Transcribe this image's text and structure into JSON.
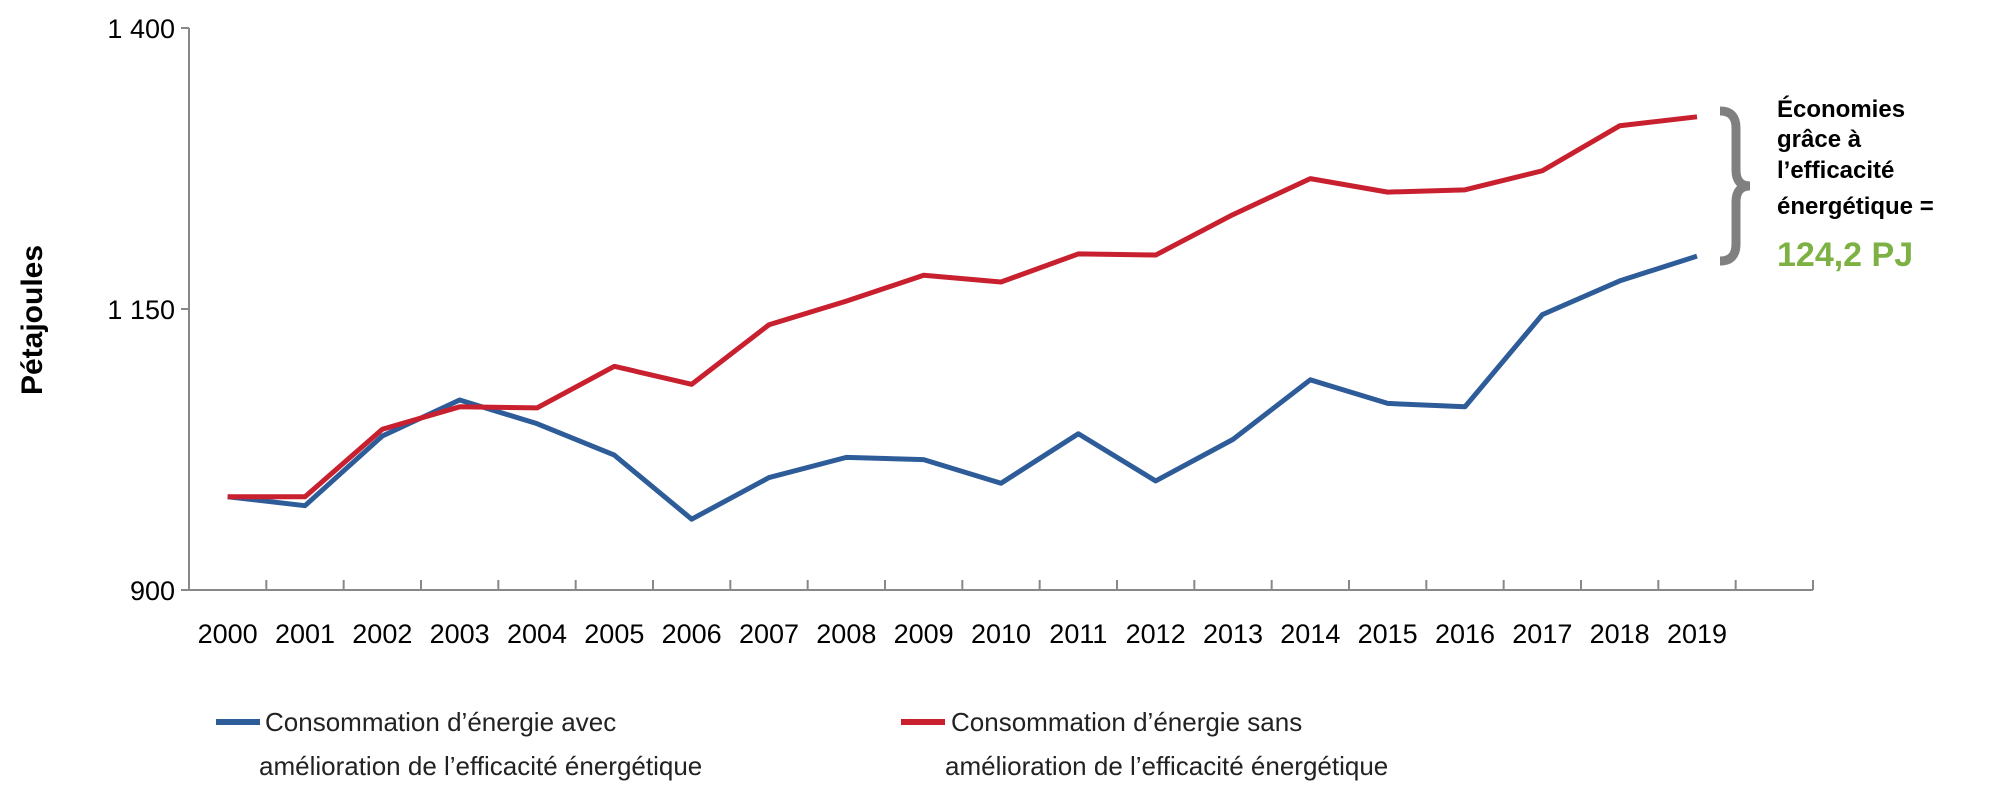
{
  "chart_data": {
    "type": "line",
    "title": "",
    "xlabel": "",
    "ylabel": "Pétajoules",
    "ylim": [
      900,
      1400
    ],
    "yticks": [
      900,
      1150,
      1400
    ],
    "ytick_labels": [
      "900",
      "1 150",
      "1 400"
    ],
    "grid": false,
    "legend_position": "bottom",
    "categories": [
      "2000",
      "2001",
      "2002",
      "2003",
      "2004",
      "2005",
      "2006",
      "2007",
      "2008",
      "2009",
      "2010",
      "2011",
      "2012",
      "2013",
      "2014",
      "2015",
      "2016",
      "2017",
      "2018",
      "2019"
    ],
    "series": [
      {
        "name_lines": [
          "Consommation d’énergie avec",
          "amélioration de l’efficacité énergétique"
        ],
        "color": "#2E5C99",
        "values": [
          983,
          975,
          1037,
          1069,
          1048,
          1020,
          963,
          1000,
          1018,
          1016,
          995,
          1039,
          997,
          1034,
          1087,
          1066,
          1063,
          1145,
          1175,
          1197
        ]
      },
      {
        "name_lines": [
          "Consommation d’énergie sans",
          "amélioration de l’efficacité énergétique"
        ],
        "color": "#C8202F",
        "values": [
          983,
          983,
          1043,
          1063,
          1062,
          1099,
          1083,
          1136,
          1157,
          1180,
          1174,
          1199,
          1198,
          1234,
          1266,
          1254,
          1256,
          1273,
          1313,
          1321
        ]
      }
    ],
    "annotation": {
      "lines": [
        "Économies",
        "grâce à",
        "l’efficacité",
        "énergétique ="
      ],
      "value": "124,2 PJ",
      "value_color": "#7DB143",
      "brace_color": "#808080"
    }
  }
}
